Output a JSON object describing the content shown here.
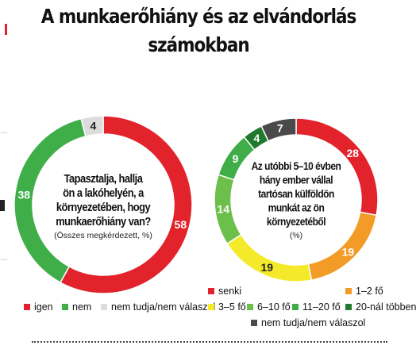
{
  "header": {
    "title_line1": "A munkaerőhiány és az elvándorlás",
    "title_line2": "számokban"
  },
  "colors": {
    "red": "#e3232c",
    "green": "#3fae49",
    "lightgray": "#dcdcdc",
    "orange": "#f29b26",
    "yellow": "#f4ea2a",
    "midgreen": "#6cbf4b",
    "darkgreen": "#1f7a2e",
    "darkgray": "#4a4a4a"
  },
  "chart_data": [
    {
      "type": "pie",
      "question": [
        "Tapasztalja, hallja",
        "ön a lakóhelyén, a",
        "környezetében, hogy",
        "munkaerőhiány van?"
      ],
      "note": "(Összes megkérdezett, %)",
      "slices": [
        {
          "label": "igen",
          "value": 58,
          "color": "#e3232c"
        },
        {
          "label": "nem",
          "value": 38,
          "color": "#3fae49"
        },
        {
          "label": "nem tudja/nem válaszol",
          "value": 4,
          "color": "#dcdcdc"
        }
      ]
    },
    {
      "type": "pie",
      "question": [
        "Az utóbbi 5–10 évben",
        "hány ember vállal",
        "tartósan külföldön",
        "munkát az ön",
        "környezetéből"
      ],
      "note": "(%)",
      "slices": [
        {
          "label": "senki",
          "value": 28,
          "color": "#e3232c"
        },
        {
          "label": "1–2 fő",
          "value": 19,
          "color": "#f29b26"
        },
        {
          "label": "3–5 fő",
          "value": 19,
          "color": "#f4ea2a"
        },
        {
          "label": "6–10 fő",
          "value": 14,
          "color": "#6cbf4b"
        },
        {
          "label": "11–20 fő",
          "value": 9,
          "color": "#3fae49"
        },
        {
          "label": "20-nál többen",
          "value": 4,
          "color": "#1f7a2e"
        },
        {
          "label": "nem tudja/nem válaszol",
          "value": 7,
          "color": "#4a4a4a"
        }
      ]
    }
  ]
}
